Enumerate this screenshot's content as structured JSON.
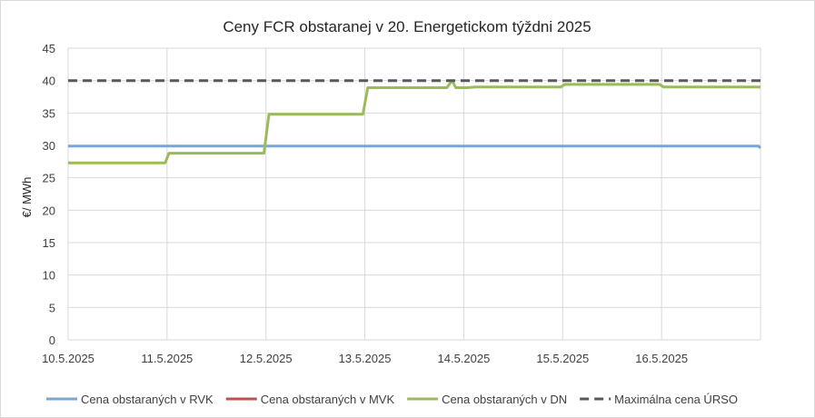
{
  "chart_data": {
    "type": "line",
    "title": "Ceny FCR obstaranej v 20. Energetickom týždni 2025",
    "ylabel": "€/ MWh",
    "xlabel": "",
    "ylim": [
      0,
      45
    ],
    "yticks": [
      0,
      5,
      10,
      15,
      20,
      25,
      30,
      35,
      40,
      45
    ],
    "xlim": [
      0,
      7
    ],
    "xtick_labels": [
      "10.5.2025",
      "11.5.2025",
      "12.5.2025",
      "13.5.2025",
      "14.5.2025",
      "15.5.2025",
      "16.5.2025"
    ],
    "grid": "horizontal and vertical",
    "legend_position": "bottom",
    "series": [
      {
        "name": "Cena obstaraných v RVK",
        "color": "#7aa6d8",
        "style": "solid",
        "x": [
          0,
          6.98,
          7
        ],
        "y": [
          29.9,
          29.9,
          29.6
        ]
      },
      {
        "name": "Cena obstaraných v MVK",
        "color": "#c0504d",
        "style": "solid",
        "x": [],
        "y": []
      },
      {
        "name": "Cena obstaraných v DN",
        "color": "#9bbb59",
        "style": "solid",
        "x": [
          0,
          0.98,
          1.02,
          1.98,
          2.03,
          2.98,
          3.03,
          3.83,
          3.88,
          3.92,
          4.03,
          4.12,
          4.5,
          4.98,
          5.02,
          5.98,
          6.02,
          7
        ],
        "y": [
          27.3,
          27.3,
          28.8,
          28.8,
          34.8,
          34.8,
          38.9,
          38.9,
          40.0,
          38.9,
          38.9,
          39.0,
          39.0,
          39.0,
          39.4,
          39.4,
          39.0,
          39.0
        ]
      },
      {
        "name": "Maximálna cena ÚRSO",
        "color": "#595959",
        "style": "dashed",
        "x": [
          0,
          7
        ],
        "y": [
          40,
          40
        ]
      }
    ]
  }
}
